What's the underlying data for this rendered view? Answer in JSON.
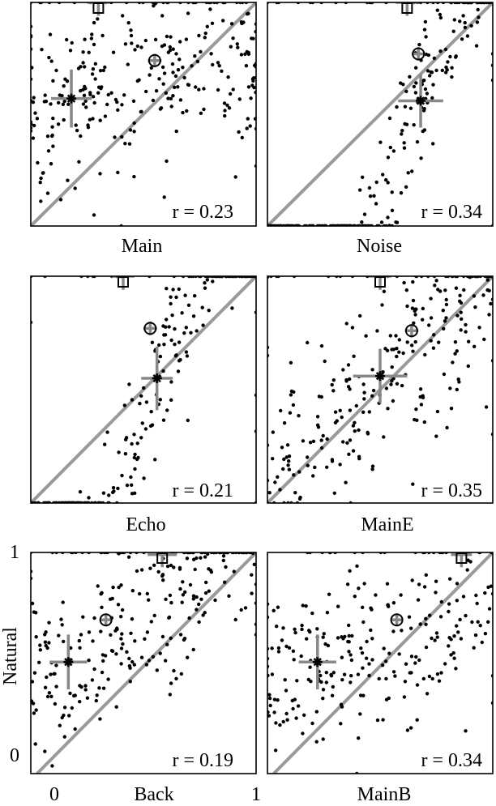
{
  "chart_data": [
    {
      "type": "scatter",
      "title": "Main",
      "r_label": "r = 0.23",
      "xlim": [
        0,
        1
      ],
      "ylim": [
        0,
        1
      ],
      "markers": {
        "square": [
          0.3,
          1.0
        ],
        "circle": [
          0.55,
          0.74
        ],
        "star": [
          0.18,
          0.57
        ]
      },
      "errorbars": {
        "square": {
          "xerr": 0.05,
          "yerr": 0.06
        },
        "circle": {
          "xerr": 0.03,
          "yerr": 0.03
        },
        "star": {
          "xerr": 0.09,
          "yerr": 0.13
        }
      }
    },
    {
      "type": "scatter",
      "title": "Noise",
      "r_label": "r = 0.34",
      "xlim": [
        0,
        1
      ],
      "ylim": [
        0,
        1
      ],
      "markers": {
        "square": [
          0.62,
          1.0
        ],
        "circle": [
          0.67,
          0.77
        ],
        "star": [
          0.68,
          0.56
        ]
      },
      "errorbars": {
        "square": {
          "xerr": 0.05,
          "yerr": 0.06
        },
        "circle": {
          "xerr": 0.03,
          "yerr": 0.03
        },
        "star": {
          "xerr": 0.1,
          "yerr": 0.12
        }
      }
    },
    {
      "type": "scatter",
      "title": "Echo",
      "r_label": "r = 0.21",
      "xlim": [
        0,
        1
      ],
      "ylim": [
        0,
        1
      ],
      "markers": {
        "square": [
          0.41,
          1.0
        ],
        "circle": [
          0.53,
          0.77
        ],
        "star": [
          0.56,
          0.55
        ]
      },
      "errorbars": {
        "square": {
          "xerr": 0.05,
          "yerr": 0.06
        },
        "circle": {
          "xerr": 0.03,
          "yerr": 0.03
        },
        "star": {
          "xerr": 0.07,
          "yerr": 0.14
        }
      }
    },
    {
      "type": "scatter",
      "title": "MainE",
      "r_label": "r = 0.35",
      "xlim": [
        0,
        1
      ],
      "ylim": [
        0,
        1
      ],
      "markers": {
        "square": [
          0.5,
          1.0
        ],
        "circle": [
          0.64,
          0.76
        ],
        "star": [
          0.5,
          0.56
        ]
      },
      "errorbars": {
        "square": {
          "xerr": 0.05,
          "yerr": 0.06
        },
        "circle": {
          "xerr": 0.03,
          "yerr": 0.03
        },
        "star": {
          "xerr": 0.12,
          "yerr": 0.12
        }
      }
    },
    {
      "type": "scatter",
      "title": "Back",
      "r_label": "r = 0.19",
      "xlabel": "Back",
      "ylabel": "Natural",
      "xticks": [
        "0",
        "1"
      ],
      "yticks": [
        "0",
        "1"
      ],
      "xlim": [
        -0.08,
        1.0
      ],
      "ylim": [
        -0.05,
        1.0
      ],
      "markers": {
        "square": [
          0.55,
          0.99
        ],
        "circle": [
          0.28,
          0.68
        ],
        "star": [
          0.1,
          0.48
        ]
      },
      "errorbars": {
        "square": {
          "xerr": 0.07,
          "yerr": 0.06
        },
        "circle": {
          "xerr": 0.03,
          "yerr": 0.03
        },
        "star": {
          "xerr": 0.09,
          "yerr": 0.13
        }
      }
    },
    {
      "type": "scatter",
      "title": "MainB",
      "r_label": "r = 0.34",
      "xlim": [
        -0.08,
        1.0
      ],
      "ylim": [
        -0.05,
        1.0
      ],
      "markers": {
        "square": [
          0.85,
          0.99
        ],
        "circle": [
          0.54,
          0.68
        ],
        "star": [
          0.16,
          0.48
        ]
      },
      "errorbars": {
        "square": {
          "xerr": 0.05,
          "yerr": 0.06
        },
        "circle": {
          "xerr": 0.03,
          "yerr": 0.03
        },
        "star": {
          "xerr": 0.09,
          "yerr": 0.13
        }
      }
    }
  ],
  "labels": {
    "main": "Main",
    "noise": "Noise",
    "echo": "Echo",
    "maine": "MainE",
    "back": "Back",
    "mainb": "MainB",
    "natural": "Natural",
    "tick0": "0",
    "tick1": "1"
  },
  "colors": {
    "diagonal": "#9a9a9a",
    "errorbar": "#888888",
    "dots": "#000000"
  }
}
